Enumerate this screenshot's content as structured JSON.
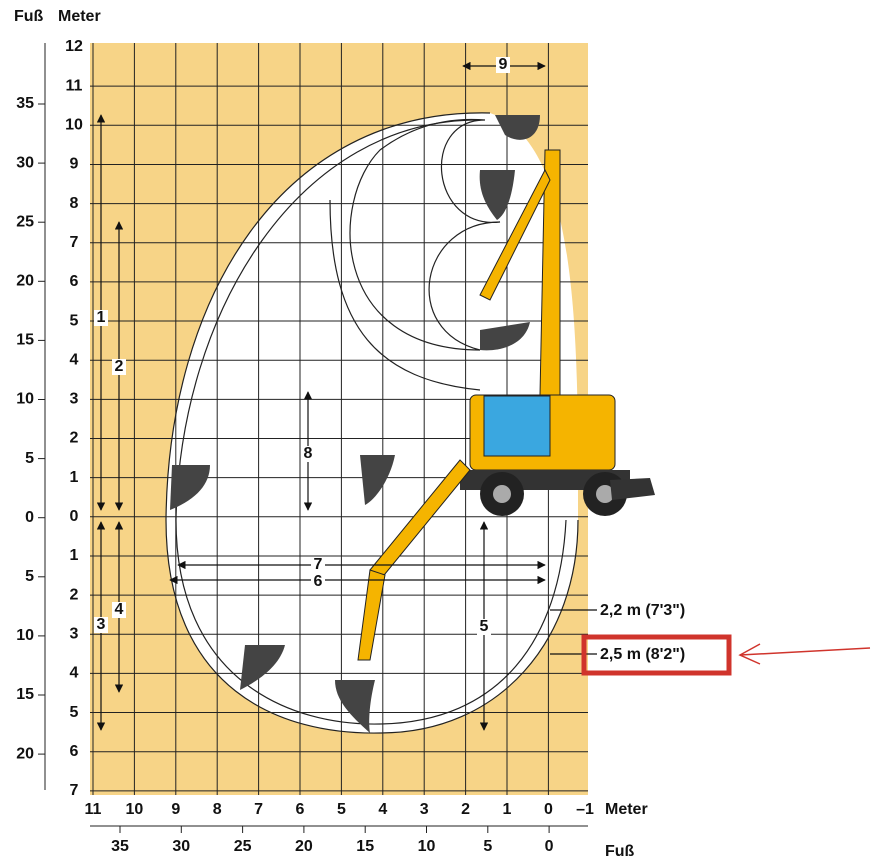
{
  "header": {
    "feet": "Fuß",
    "meter": "Meter"
  },
  "left_meter_ticks": [
    "12",
    "11",
    "10",
    "9",
    "8",
    "7",
    "6",
    "5",
    "4",
    "3",
    "2",
    "1",
    "0",
    "1",
    "2",
    "3",
    "4",
    "5",
    "6",
    "7"
  ],
  "left_feet_ticks": [
    "35",
    "30",
    "25",
    "20",
    "15",
    "10",
    "5",
    "0",
    "5",
    "10",
    "15",
    "20"
  ],
  "bottom_meter_ticks": [
    "11",
    "10",
    "9",
    "8",
    "7",
    "6",
    "5",
    "4",
    "3",
    "2",
    "1",
    "0",
    "–1"
  ],
  "bottom_meter_unit": "Meter",
  "bottom_feet_ticks": [
    "35",
    "30",
    "25",
    "20",
    "15",
    "10",
    "5",
    "0"
  ],
  "bottom_feet_unit": "Fuß",
  "dimensions": [
    "1",
    "2",
    "3",
    "4",
    "5",
    "6",
    "7",
    "8",
    "9"
  ],
  "callouts": [
    "2,2 m (7'3\")",
    "2,5 m (8'2\")"
  ]
}
